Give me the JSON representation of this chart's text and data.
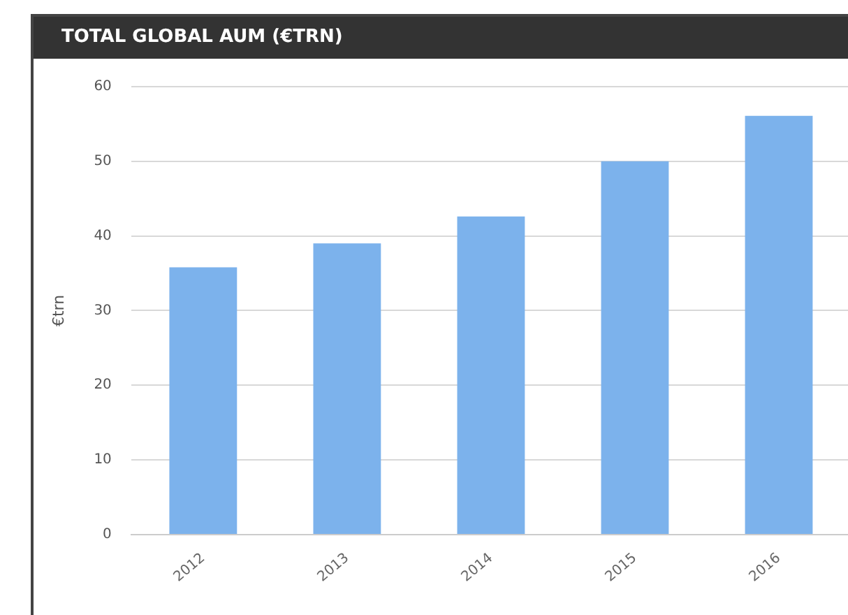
{
  "chart_data": {
    "type": "bar",
    "title": "TOTAL GLOBAL AUM (€TRN)",
    "ylabel": "€trn",
    "categories": [
      "2012",
      "2013",
      "2014",
      "2015",
      "2016"
    ],
    "values": [
      35.8,
      39.0,
      42.6,
      50.0,
      56.1
    ],
    "color": "#7cb2ec",
    "ylim": [
      0,
      60
    ],
    "yticks": [
      0,
      10,
      20,
      30,
      40,
      50,
      60
    ],
    "grid": "y",
    "legend": false
  }
}
